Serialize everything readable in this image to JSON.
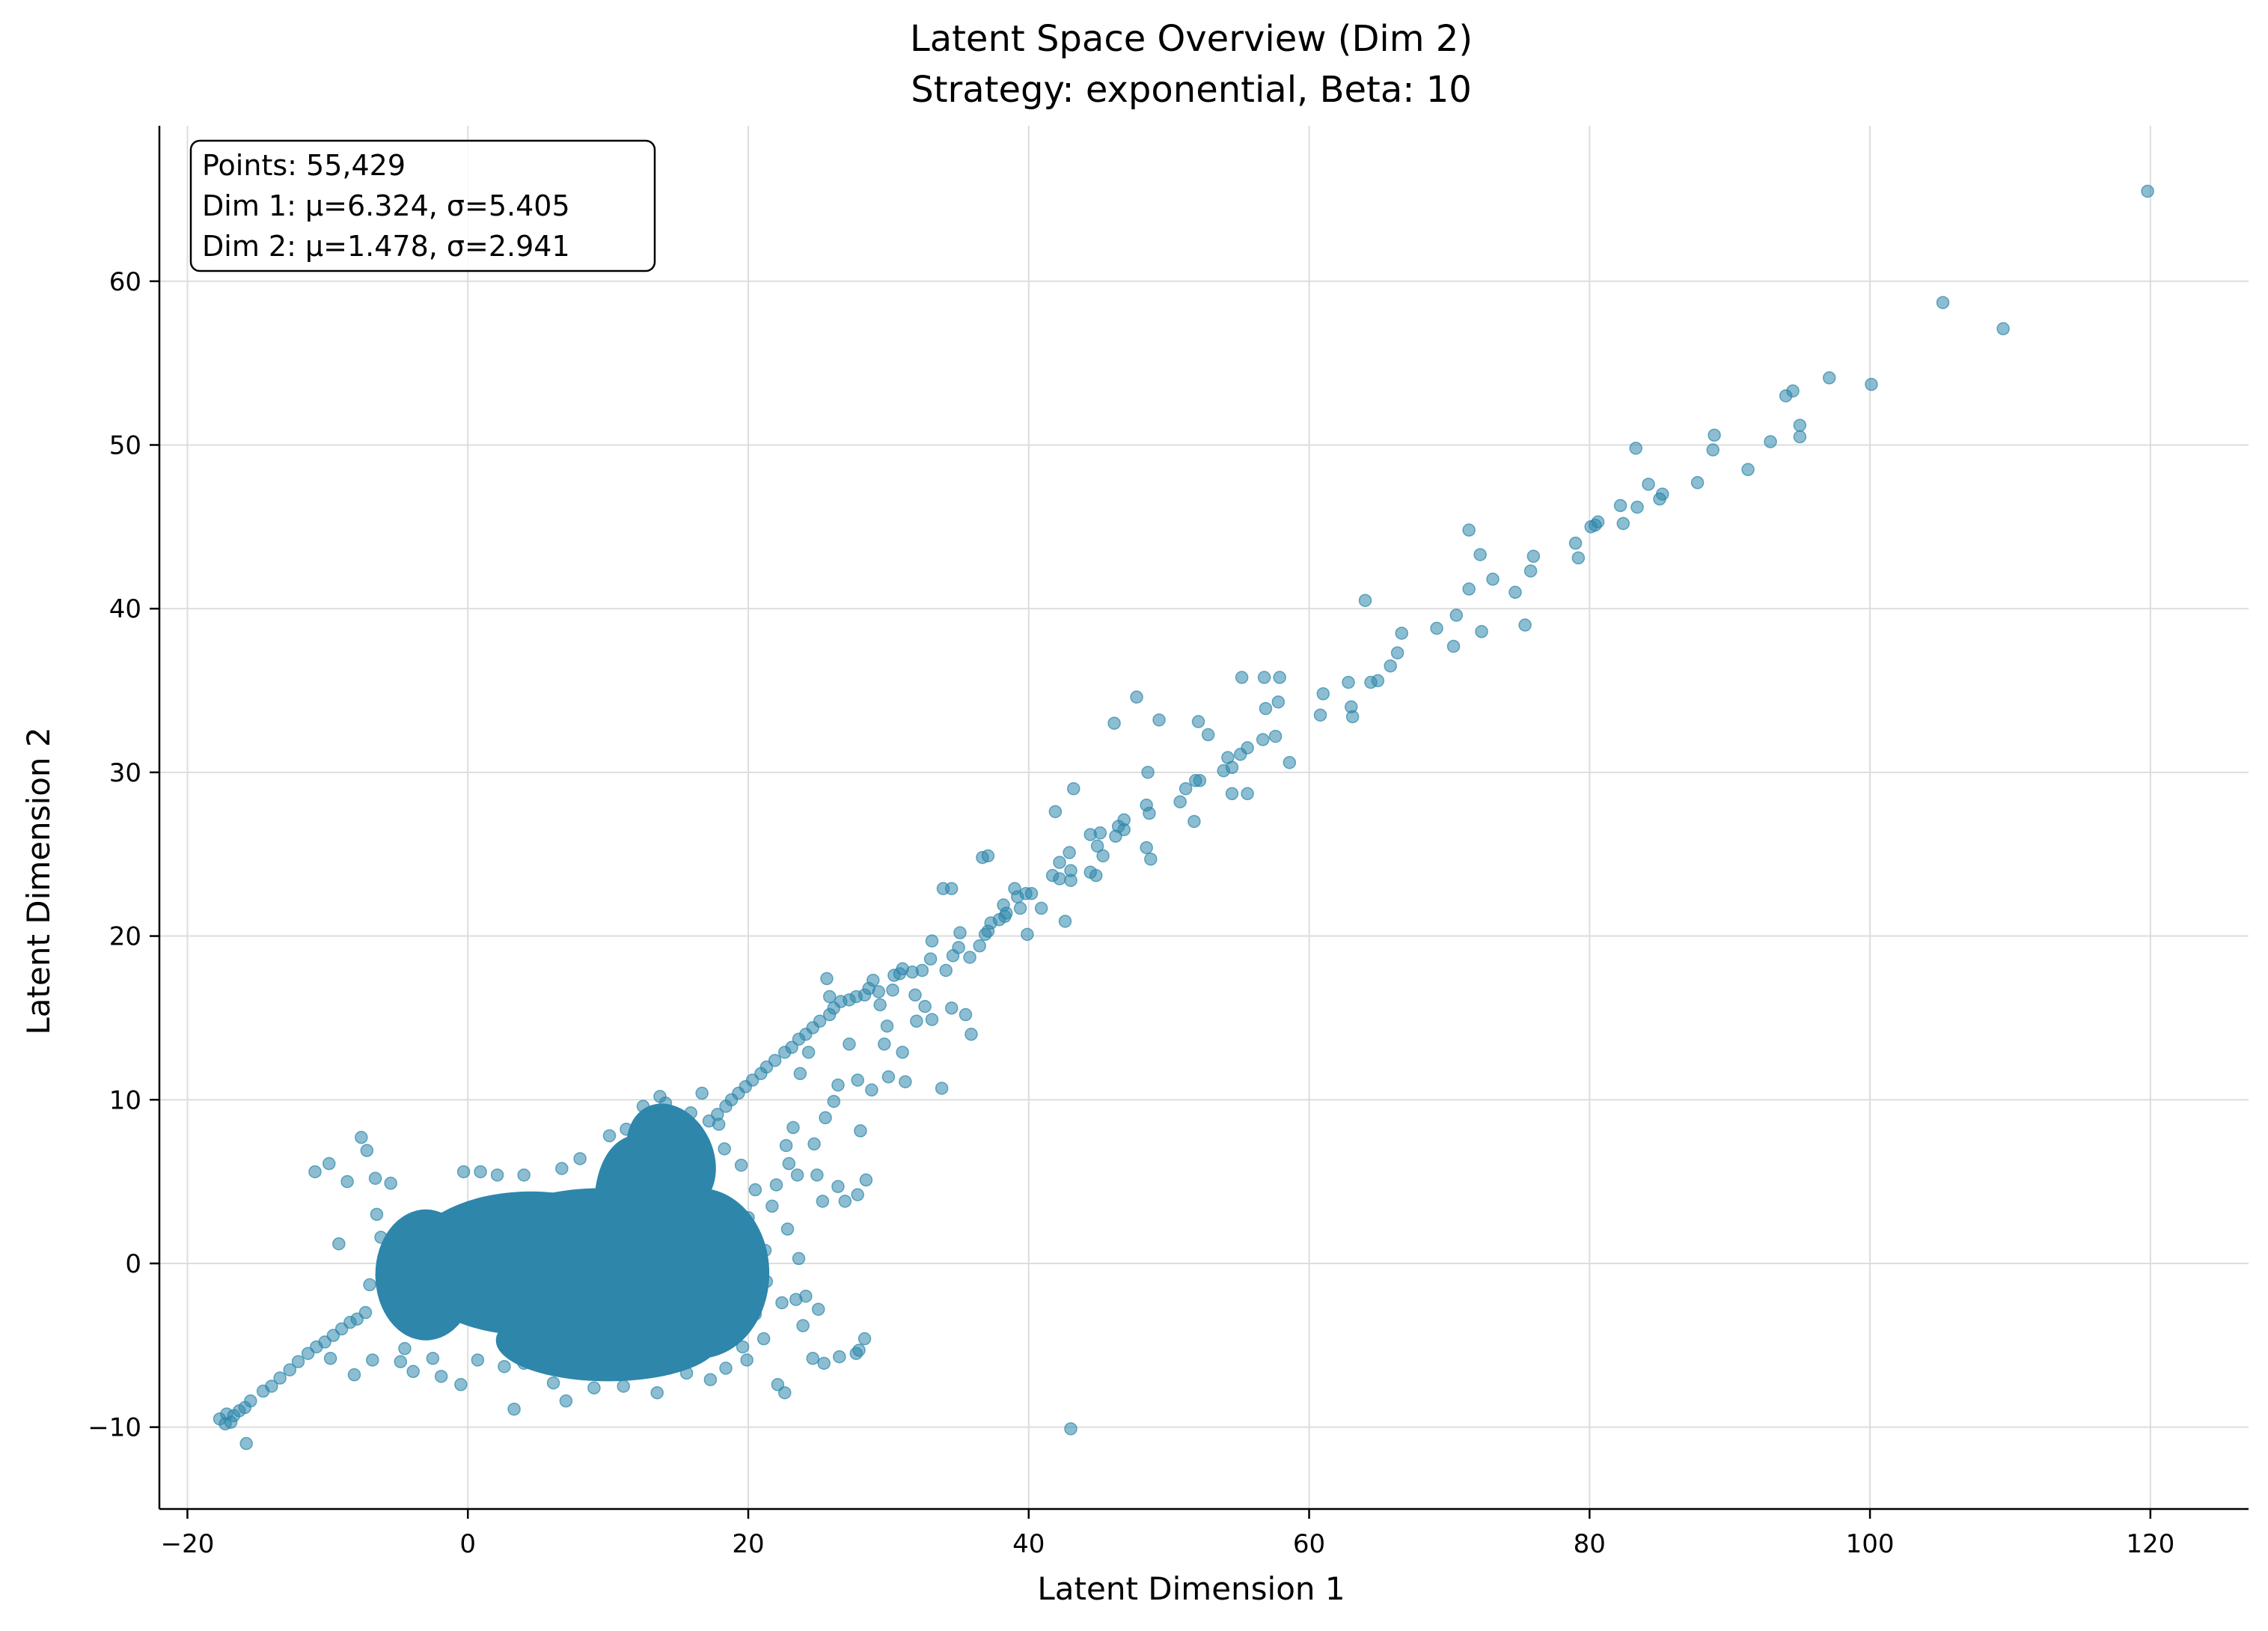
{
  "chart_data": {
    "type": "scatter",
    "title": "Latent Space Overview (Dim 2)",
    "subtitle": "Strategy: exponential, Beta: 10",
    "xlabel": "Latent Dimension 1",
    "ylabel": "Latent Dimension 2",
    "xlim": [
      -22,
      127
    ],
    "ylim": [
      -15,
      69.5
    ],
    "xticks": [
      -20,
      0,
      20,
      40,
      60,
      80,
      100,
      120
    ],
    "yticks": [
      -10,
      0,
      10,
      20,
      30,
      40,
      50,
      60
    ],
    "xtick_labels": [
      "−20",
      "0",
      "20",
      "40",
      "60",
      "80",
      "100",
      "120"
    ],
    "ytick_labels": [
      "−10",
      "0",
      "10",
      "20",
      "30",
      "40",
      "50",
      "60"
    ],
    "grid": true,
    "legend": "none",
    "marker_color": "#2e86ab",
    "stats": {
      "lines": [
        "Points: 55,429",
        "Dim 1: μ=6.324, σ=5.405",
        "Dim 2: μ=1.478, σ=2.941"
      ],
      "placement": "top-left"
    },
    "points": [
      [
        119.8,
        65.5
      ],
      [
        105.2,
        58.7
      ],
      [
        109.5,
        57.1
      ],
      [
        97.1,
        54.1
      ],
      [
        100.1,
        53.7
      ],
      [
        94.5,
        53.3
      ],
      [
        94.0,
        53.0
      ],
      [
        95.0,
        51.2
      ],
      [
        88.9,
        50.6
      ],
      [
        95.0,
        50.5
      ],
      [
        92.9,
        50.2
      ],
      [
        83.3,
        49.8
      ],
      [
        88.8,
        49.7
      ],
      [
        91.3,
        48.5
      ],
      [
        87.7,
        47.7
      ],
      [
        84.2,
        47.6
      ],
      [
        85.2,
        47.0
      ],
      [
        85.0,
        46.7
      ],
      [
        83.4,
        46.2
      ],
      [
        82.2,
        46.3
      ],
      [
        80.6,
        45.3
      ],
      [
        80.4,
        45.1
      ],
      [
        80.1,
        45.0
      ],
      [
        82.4,
        45.2
      ],
      [
        71.4,
        44.8
      ],
      [
        79.0,
        44.0
      ],
      [
        72.2,
        43.3
      ],
      [
        76.0,
        43.2
      ],
      [
        79.2,
        43.1
      ],
      [
        75.8,
        42.3
      ],
      [
        73.1,
        41.8
      ],
      [
        71.4,
        41.2
      ],
      [
        74.7,
        41.0
      ],
      [
        64.0,
        40.5
      ],
      [
        70.5,
        39.6
      ],
      [
        75.4,
        39.0
      ],
      [
        69.1,
        38.8
      ],
      [
        72.3,
        38.6
      ],
      [
        66.6,
        38.5
      ],
      [
        70.3,
        37.7
      ],
      [
        66.3,
        37.3
      ],
      [
        65.8,
        36.5
      ],
      [
        57.9,
        35.8
      ],
      [
        55.2,
        35.8
      ],
      [
        56.8,
        35.8
      ],
      [
        64.9,
        35.6
      ],
      [
        64.4,
        35.5
      ],
      [
        62.8,
        35.5
      ],
      [
        61.0,
        34.8
      ],
      [
        47.7,
        34.6
      ],
      [
        57.8,
        34.3
      ],
      [
        56.9,
        33.9
      ],
      [
        63.0,
        34.0
      ],
      [
        60.8,
        33.5
      ],
      [
        63.1,
        33.4
      ],
      [
        49.3,
        33.2
      ],
      [
        46.1,
        33.0
      ],
      [
        52.1,
        33.1
      ],
      [
        52.8,
        32.3
      ],
      [
        57.6,
        32.2
      ],
      [
        56.7,
        32.0
      ],
      [
        55.6,
        31.5
      ],
      [
        55.1,
        31.1
      ],
      [
        54.2,
        30.9
      ],
      [
        58.6,
        30.6
      ],
      [
        54.5,
        30.3
      ],
      [
        53.9,
        30.1
      ],
      [
        48.5,
        30.0
      ],
      [
        52.2,
        29.5
      ],
      [
        51.9,
        29.5
      ],
      [
        51.2,
        29.0
      ],
      [
        43.2,
        29.0
      ],
      [
        54.5,
        28.7
      ],
      [
        55.6,
        28.7
      ],
      [
        50.8,
        28.2
      ],
      [
        48.4,
        28.0
      ],
      [
        48.6,
        27.5
      ],
      [
        41.9,
        27.6
      ],
      [
        46.8,
        27.1
      ],
      [
        46.4,
        26.7
      ],
      [
        46.8,
        26.5
      ],
      [
        51.8,
        27.0
      ],
      [
        45.1,
        26.3
      ],
      [
        46.2,
        26.1
      ],
      [
        44.4,
        26.2
      ],
      [
        44.9,
        25.5
      ],
      [
        42.9,
        25.1
      ],
      [
        45.3,
        24.9
      ],
      [
        48.4,
        25.4
      ],
      [
        48.7,
        24.7
      ],
      [
        36.7,
        24.8
      ],
      [
        37.1,
        24.9
      ],
      [
        42.2,
        24.5
      ],
      [
        44.4,
        23.9
      ],
      [
        43.0,
        24.0
      ],
      [
        44.8,
        23.7
      ],
      [
        42.2,
        23.5
      ],
      [
        41.7,
        23.7
      ],
      [
        43.0,
        23.4
      ],
      [
        33.9,
        22.9
      ],
      [
        34.5,
        22.9
      ],
      [
        39.0,
        22.9
      ],
      [
        39.8,
        22.6
      ],
      [
        40.2,
        22.6
      ],
      [
        38.2,
        21.9
      ],
      [
        39.2,
        22.4
      ],
      [
        39.4,
        21.7
      ],
      [
        40.9,
        21.7
      ],
      [
        38.4,
        21.4
      ],
      [
        38.3,
        21.2
      ],
      [
        37.9,
        21.0
      ],
      [
        37.3,
        20.8
      ],
      [
        37.1,
        20.3
      ],
      [
        36.9,
        20.1
      ],
      [
        35.1,
        20.2
      ],
      [
        42.6,
        20.9
      ],
      [
        39.9,
        20.1
      ],
      [
        36.5,
        19.4
      ],
      [
        35.0,
        19.3
      ],
      [
        34.6,
        18.8
      ],
      [
        33.1,
        19.7
      ],
      [
        33.0,
        18.6
      ],
      [
        32.4,
        17.9
      ],
      [
        31.7,
        17.8
      ],
      [
        30.8,
        17.7
      ],
      [
        30.4,
        17.6
      ],
      [
        28.9,
        17.3
      ],
      [
        28.6,
        16.8
      ],
      [
        28.3,
        16.4
      ],
      [
        27.7,
        16.3
      ],
      [
        27.2,
        16.1
      ],
      [
        26.6,
        16.0
      ],
      [
        26.1,
        15.6
      ],
      [
        25.8,
        15.2
      ],
      [
        25.1,
        14.8
      ],
      [
        24.6,
        14.4
      ],
      [
        24.1,
        14.0
      ],
      [
        23.6,
        13.7
      ],
      [
        23.1,
        13.2
      ],
      [
        22.6,
        12.9
      ],
      [
        21.9,
        12.4
      ],
      [
        21.3,
        12.0
      ],
      [
        20.9,
        11.6
      ],
      [
        20.3,
        11.2
      ],
      [
        19.8,
        10.8
      ],
      [
        19.3,
        10.4
      ],
      [
        18.8,
        10.0
      ],
      [
        18.4,
        9.6
      ],
      [
        17.8,
        9.1
      ],
      [
        17.2,
        8.7
      ],
      [
        31.0,
        18.0
      ],
      [
        29.3,
        16.6
      ],
      [
        31.9,
        16.4
      ],
      [
        34.1,
        17.9
      ],
      [
        35.8,
        18.7
      ],
      [
        25.8,
        16.3
      ],
      [
        25.6,
        17.4
      ],
      [
        29.4,
        15.8
      ],
      [
        30.3,
        16.7
      ],
      [
        32.6,
        15.7
      ],
      [
        34.5,
        15.6
      ],
      [
        35.5,
        15.2
      ],
      [
        32.0,
        14.8
      ],
      [
        29.9,
        14.5
      ],
      [
        29.7,
        13.4
      ],
      [
        31.0,
        12.9
      ],
      [
        33.1,
        14.9
      ],
      [
        35.9,
        14.0
      ],
      [
        33.8,
        10.7
      ],
      [
        30.0,
        11.4
      ],
      [
        31.2,
        11.1
      ],
      [
        27.2,
        13.4
      ],
      [
        24.3,
        12.9
      ],
      [
        23.7,
        11.6
      ],
      [
        26.4,
        10.9
      ],
      [
        27.8,
        11.2
      ],
      [
        28.8,
        10.6
      ],
      [
        26.1,
        9.9
      ],
      [
        28.0,
        8.1
      ],
      [
        25.5,
        8.9
      ],
      [
        23.2,
        8.3
      ],
      [
        24.7,
        7.3
      ],
      [
        24.9,
        5.4
      ],
      [
        23.5,
        5.4
      ],
      [
        26.4,
        4.7
      ],
      [
        26.9,
        3.8
      ],
      [
        28.4,
        5.1
      ],
      [
        27.8,
        4.2
      ],
      [
        25.3,
        3.8
      ],
      [
        22.9,
        6.1
      ],
      [
        22.7,
        7.2
      ],
      [
        22.0,
        4.8
      ],
      [
        21.7,
        3.5
      ],
      [
        22.8,
        2.1
      ],
      [
        23.6,
        0.3
      ],
      [
        24.1,
        -2.0
      ],
      [
        25.0,
        -2.8
      ],
      [
        22.4,
        -2.4
      ],
      [
        24.6,
        -5.8
      ],
      [
        25.4,
        -6.1
      ],
      [
        26.5,
        -5.7
      ],
      [
        27.7,
        -5.5
      ],
      [
        28.3,
        -4.6
      ],
      [
        27.9,
        -5.3
      ],
      [
        22.1,
        -7.4
      ],
      [
        22.6,
        -7.9
      ],
      [
        -17.7,
        -9.5
      ],
      [
        -17.3,
        -9.8
      ],
      [
        -16.9,
        -9.7
      ],
      [
        -17.2,
        -9.2
      ],
      [
        -16.7,
        -9.3
      ],
      [
        -16.3,
        -9.0
      ],
      [
        -15.9,
        -8.8
      ],
      [
        -15.5,
        -8.4
      ],
      [
        -15.8,
        -11.0
      ],
      [
        -14.6,
        -7.8
      ],
      [
        -14.0,
        -7.5
      ],
      [
        -13.4,
        -7.0
      ],
      [
        -12.7,
        -6.5
      ],
      [
        -12.1,
        -6.0
      ],
      [
        -11.4,
        -5.5
      ],
      [
        -10.8,
        -5.1
      ],
      [
        -10.2,
        -4.8
      ],
      [
        -9.6,
        -4.4
      ],
      [
        -9.0,
        -4.0
      ],
      [
        -8.4,
        -3.6
      ],
      [
        -7.9,
        -3.4
      ],
      [
        -7.3,
        -3.0
      ],
      [
        -10.9,
        5.6
      ],
      [
        -9.9,
        6.1
      ],
      [
        -7.6,
        7.7
      ],
      [
        -8.6,
        5.0
      ],
      [
        -7.2,
        6.9
      ],
      [
        -6.6,
        5.2
      ],
      [
        -9.2,
        1.2
      ],
      [
        -6.5,
        3.0
      ],
      [
        -5.5,
        4.9
      ],
      [
        -6.2,
        1.6
      ],
      [
        -7.0,
        -1.3
      ],
      [
        -5.6,
        -2.1
      ],
      [
        -6.8,
        -5.9
      ],
      [
        -8.1,
        -6.8
      ],
      [
        -9.8,
        -5.8
      ],
      [
        -4.8,
        -6.0
      ],
      [
        -3.9,
        -6.6
      ],
      [
        -4.5,
        -5.2
      ],
      [
        -2.5,
        -5.8
      ],
      [
        -1.9,
        -6.9
      ],
      [
        -0.5,
        -7.4
      ],
      [
        0.7,
        -5.9
      ],
      [
        2.6,
        -6.3
      ],
      [
        3.3,
        -8.9
      ],
      [
        4.0,
        -6.1
      ],
      [
        6.1,
        -7.3
      ],
      [
        7.0,
        -8.4
      ],
      [
        9.0,
        -7.6
      ],
      [
        11.1,
        -7.5
      ],
      [
        13.5,
        -7.9
      ],
      [
        15.6,
        -6.7
      ],
      [
        17.3,
        -7.1
      ],
      [
        18.4,
        -6.4
      ],
      [
        19.9,
        -5.9
      ],
      [
        43.0,
        -10.1
      ],
      [
        -0.3,
        5.6
      ],
      [
        0.9,
        5.6
      ],
      [
        2.1,
        5.4
      ],
      [
        4.0,
        5.4
      ],
      [
        6.7,
        5.8
      ],
      [
        8.0,
        6.4
      ],
      [
        10.1,
        7.8
      ],
      [
        11.3,
        8.2
      ],
      [
        12.8,
        9.0
      ],
      [
        14.1,
        9.8
      ],
      [
        12.5,
        9.6
      ],
      [
        13.7,
        10.2
      ],
      [
        16.7,
        10.4
      ],
      [
        15.9,
        9.2
      ],
      [
        17.9,
        8.5
      ],
      [
        18.3,
        7.0
      ],
      [
        19.5,
        6.0
      ],
      [
        20.5,
        4.5
      ],
      [
        20.0,
        2.8
      ],
      [
        21.2,
        0.8
      ],
      [
        21.3,
        -1.1
      ],
      [
        20.5,
        -3.1
      ],
      [
        21.1,
        -4.6
      ],
      [
        19.6,
        -5.1
      ],
      [
        18.2,
        -4.1
      ],
      [
        23.4,
        -2.2
      ],
      [
        23.9,
        -3.8
      ]
    ]
  }
}
